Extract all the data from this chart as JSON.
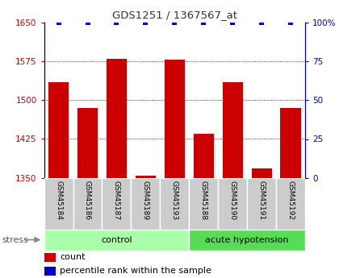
{
  "title": "GDS1251 / 1367567_at",
  "samples": [
    "GSM45184",
    "GSM45186",
    "GSM45187",
    "GSM45189",
    "GSM45193",
    "GSM45188",
    "GSM45190",
    "GSM45191",
    "GSM45192"
  ],
  "bar_values": [
    1535,
    1485,
    1580,
    1355,
    1578,
    1435,
    1535,
    1368,
    1485
  ],
  "percentile_values": [
    100,
    100,
    100,
    100,
    100,
    100,
    100,
    100,
    100
  ],
  "bar_color": "#cc0000",
  "percentile_color": "#0000cc",
  "ylim_left": [
    1350,
    1650
  ],
  "ylim_right": [
    0,
    100
  ],
  "yticks_left": [
    1350,
    1425,
    1500,
    1575,
    1650
  ],
  "yticks_right": [
    0,
    25,
    50,
    75,
    100
  ],
  "groups": [
    {
      "label": "control",
      "start": 0,
      "end": 5,
      "color": "#aaffaa"
    },
    {
      "label": "acute hypotension",
      "start": 5,
      "end": 9,
      "color": "#55dd55"
    }
  ],
  "stress_label": "stress",
  "legend_count_label": "count",
  "legend_percentile_label": "percentile rank within the sample",
  "title_color": "#333333",
  "left_axis_color": "#cc0000",
  "right_axis_color": "#0000cc",
  "bar_width": 0.7,
  "grid_color": "#000000",
  "sample_box_color": "#cccccc",
  "bg_color": "#ffffff"
}
